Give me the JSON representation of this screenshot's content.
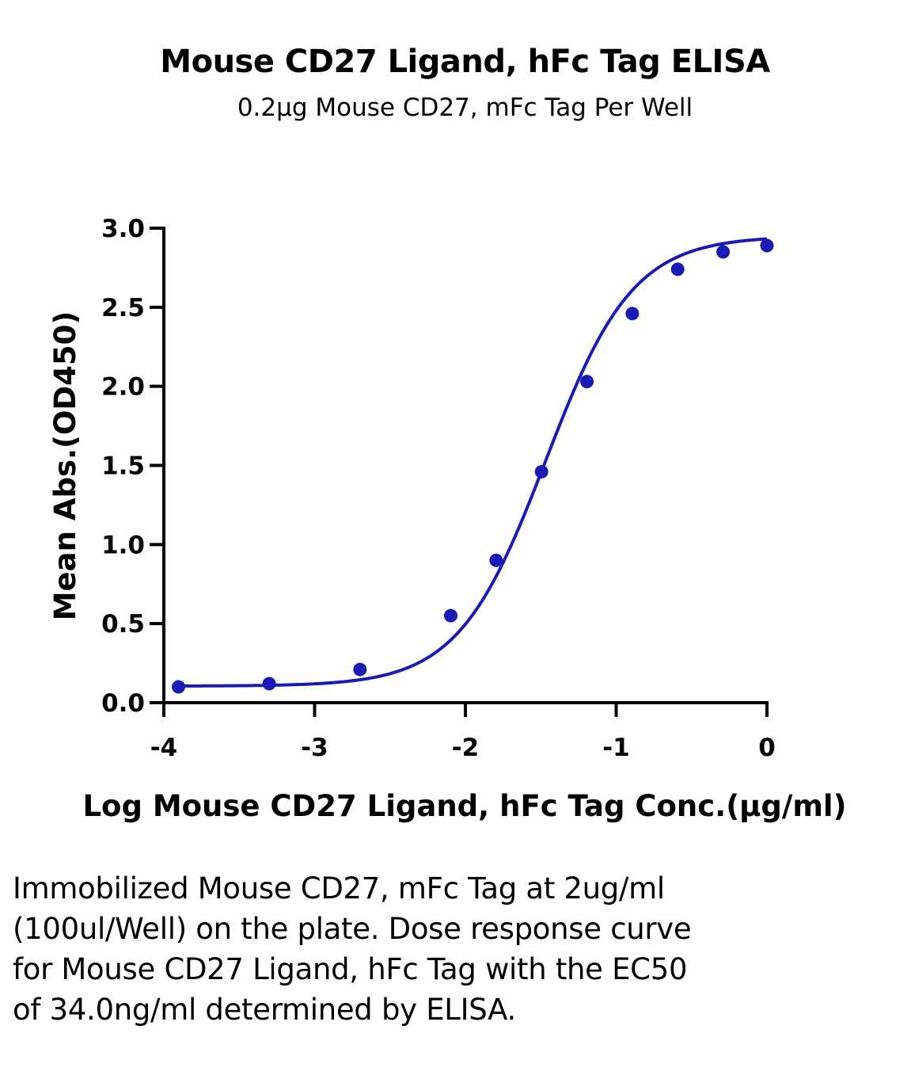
{
  "chart_data": {
    "type": "scatter",
    "title": "Mouse CD27 Ligand, hFc Tag ELISA",
    "subtitle": "0.2μg Mouse CD27, mFc Tag Per Well",
    "xlabel": "Log Mouse CD27 Ligand, hFc Tag Conc.(μg/ml)",
    "ylabel": "Mean Abs.(OD450)",
    "xlim": [
      -4,
      0
    ],
    "ylim": [
      0,
      3
    ],
    "x_ticks": [
      "-4",
      "-3",
      "-2",
      "-1",
      "0"
    ],
    "y_ticks": [
      "0.0",
      "0.5",
      "1.0",
      "1.5",
      "2.0",
      "2.5",
      "3.0"
    ],
    "grid": false,
    "legend": "none",
    "series": [
      {
        "x": [
          -3.903,
          -3.301,
          -2.699,
          -2.097,
          -1.796,
          -1.495,
          -1.194,
          -0.893,
          -0.592,
          -0.291,
          0.0
        ],
        "y": [
          0.1,
          0.12,
          0.21,
          0.55,
          0.9,
          1.46,
          2.03,
          2.46,
          2.74,
          2.85,
          2.89
        ],
        "color": "#1a1ab4",
        "fit": "4PL",
        "fit_params": {
          "bottom": 0.105,
          "top": 2.95,
          "log_ec50": -1.4685,
          "hill": 1.5
        }
      }
    ]
  },
  "caption": "Immobilized Mouse CD27, mFc Tag at 2ug/ml (100ul/Well) on the plate. Dose response curve for Mouse CD27 Ligand, hFc Tag with the EC50 of 34.0ng/ml determined by ELISA."
}
